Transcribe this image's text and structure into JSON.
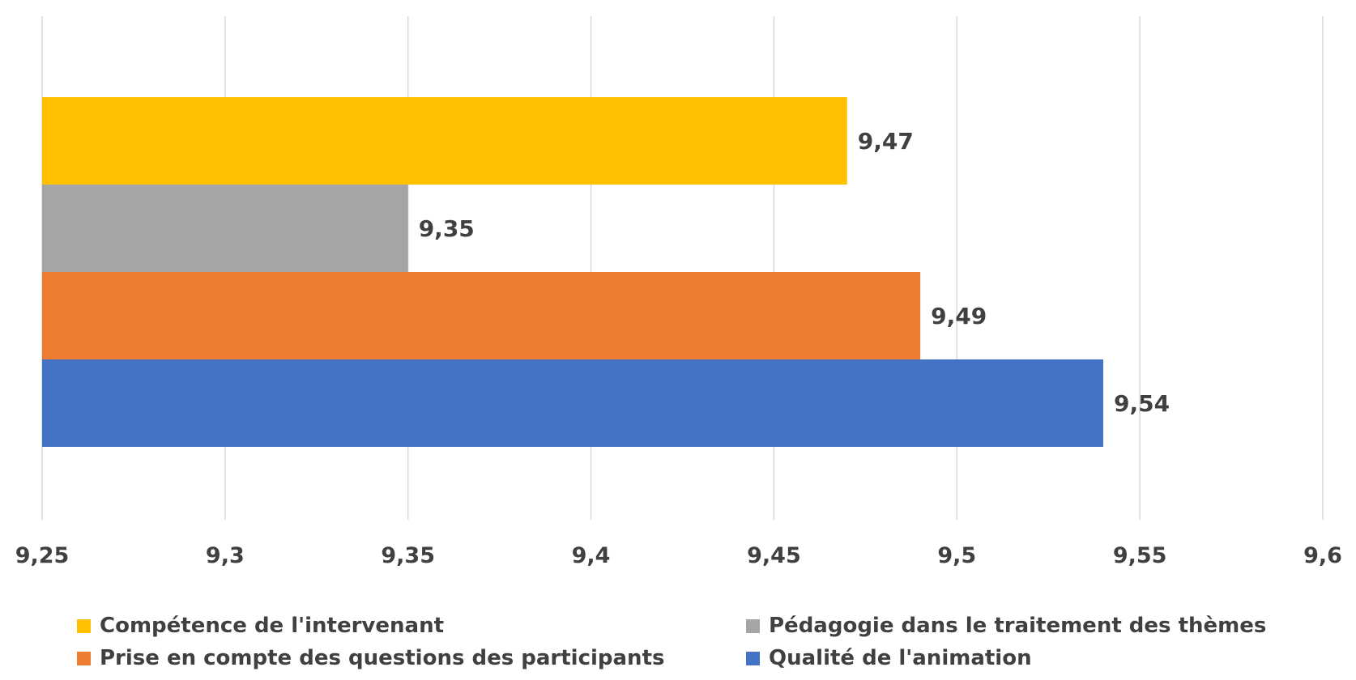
{
  "chart_data": {
    "type": "bar",
    "orientation": "horizontal",
    "title": "",
    "xlabel": "",
    "ylabel": "",
    "xlim": [
      9.25,
      9.6
    ],
    "x_ticks": [
      "9,25",
      "9,3",
      "9,35",
      "9,4",
      "9,45",
      "9,5",
      "9,55",
      "9,6"
    ],
    "x_tick_values": [
      9.25,
      9.3,
      9.35,
      9.4,
      9.45,
      9.5,
      9.55,
      9.6
    ],
    "grid": "vertical",
    "legend_position": "bottom",
    "series": [
      {
        "name": "Compétence de l'intervenant",
        "value": 9.47,
        "label": "9,47",
        "color": "#FFC000"
      },
      {
        "name": "Pédagogie dans le traitement des thèmes",
        "value": 9.35,
        "label": "9,35",
        "color": "#A5A5A5"
      },
      {
        "name": "Prise en compte des questions des participants",
        "value": 9.49,
        "label": "9,49",
        "color": "#ED7D31"
      },
      {
        "name": "Qualité de l'animation",
        "value": 9.54,
        "label": "9,54",
        "color": "#4472C4"
      }
    ]
  }
}
